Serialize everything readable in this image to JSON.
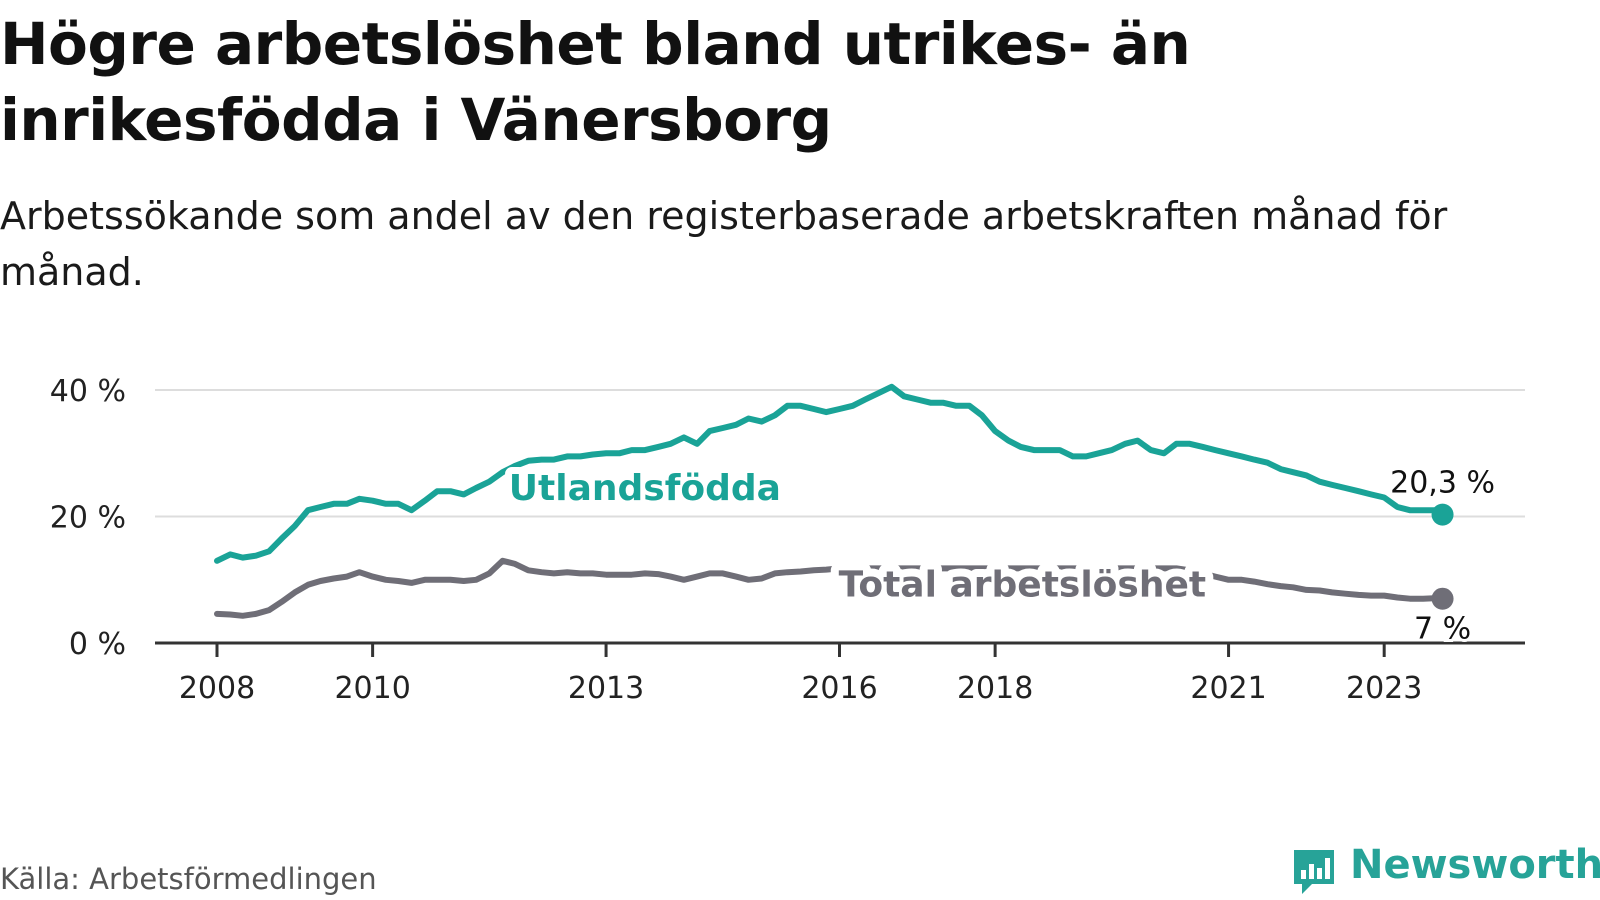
{
  "header": {
    "title": "Högre arbetslöshet bland utrikes- än inrikesfödda i Vänersborg",
    "subtitle": "Arbetssökande som andel av den registerbaserade arbetskraften månad för månad."
  },
  "footer": {
    "source": "Källa: Arbetsförmedlingen",
    "brand": "Newsworthy"
  },
  "colors": {
    "foreign": "#1aa397",
    "total": "#6f6e77",
    "grid": "#dddddd",
    "axis": "#333333",
    "brand": "#27a398"
  },
  "chart_data": {
    "type": "line",
    "title": "Högre arbetslöshet bland utrikes- än inrikesfödda i Vänersborg",
    "xlabel": "",
    "ylabel": "",
    "xlim": [
      2008,
      2024
    ],
    "ylim": [
      0,
      40
    ],
    "grid": true,
    "x_ticks": [
      2008,
      2010,
      2013,
      2016,
      2018,
      2021,
      2023
    ],
    "x_tick_labels": [
      "2008",
      "2010",
      "2013",
      "2016",
      "2018",
      "2021",
      "2023"
    ],
    "y_ticks": [
      0,
      20,
      40
    ],
    "y_tick_labels": [
      "0 %",
      "20 %",
      "40 %"
    ],
    "series": [
      {
        "name": "Utlandsfödda",
        "end_label": "20,3 %",
        "x": [
          2008.0,
          2008.17,
          2008.33,
          2008.5,
          2008.67,
          2008.83,
          2009.0,
          2009.17,
          2009.33,
          2009.5,
          2009.67,
          2009.83,
          2010.0,
          2010.17,
          2010.33,
          2010.5,
          2010.67,
          2010.83,
          2011.0,
          2011.17,
          2011.33,
          2011.5,
          2011.67,
          2011.83,
          2012.0,
          2012.17,
          2012.33,
          2012.5,
          2012.67,
          2012.83,
          2013.0,
          2013.17,
          2013.33,
          2013.5,
          2013.67,
          2013.83,
          2014.0,
          2014.17,
          2014.33,
          2014.5,
          2014.67,
          2014.83,
          2015.0,
          2015.17,
          2015.33,
          2015.5,
          2015.67,
          2015.83,
          2016.0,
          2016.17,
          2016.33,
          2016.5,
          2016.67,
          2016.83,
          2017.0,
          2017.17,
          2017.33,
          2017.5,
          2017.67,
          2017.83,
          2018.0,
          2018.17,
          2018.33,
          2018.5,
          2018.67,
          2018.83,
          2019.0,
          2019.17,
          2019.33,
          2019.5,
          2019.67,
          2019.83,
          2020.0,
          2020.17,
          2020.33,
          2020.5,
          2020.67,
          2020.83,
          2021.0,
          2021.17,
          2021.33,
          2021.5,
          2021.67,
          2021.83,
          2022.0,
          2022.17,
          2022.33,
          2022.5,
          2022.67,
          2022.83,
          2023.0,
          2023.17,
          2023.33,
          2023.5,
          2023.67,
          2023.75
        ],
        "values": [
          13.0,
          14.0,
          13.5,
          13.8,
          14.5,
          16.5,
          18.5,
          21.0,
          21.5,
          22.0,
          22.0,
          22.8,
          22.5,
          22.0,
          22.0,
          21.0,
          22.5,
          24.0,
          24.0,
          23.5,
          24.5,
          25.5,
          27.0,
          28.0,
          28.8,
          29.0,
          29.0,
          29.5,
          29.5,
          29.8,
          30.0,
          30.0,
          30.5,
          30.5,
          31.0,
          31.5,
          32.5,
          31.5,
          33.5,
          34.0,
          34.5,
          35.5,
          35.0,
          36.0,
          37.5,
          37.5,
          37.0,
          36.5,
          37.0,
          37.5,
          38.5,
          39.5,
          40.5,
          39.0,
          38.5,
          38.0,
          38.0,
          37.5,
          37.5,
          36.0,
          33.5,
          32.0,
          31.0,
          30.5,
          30.5,
          30.5,
          29.5,
          29.5,
          30.0,
          30.5,
          31.5,
          32.0,
          30.5,
          30.0,
          31.5,
          31.5,
          31.0,
          30.5,
          30.0,
          29.5,
          29.0,
          28.5,
          27.5,
          27.0,
          26.5,
          25.5,
          25.0,
          24.5,
          24.0,
          23.5,
          23.0,
          21.5,
          21.0,
          21.0,
          21.0,
          20.3
        ]
      },
      {
        "name": "Total arbetslöshet",
        "end_label": "7 %",
        "x": [
          2008.0,
          2008.17,
          2008.33,
          2008.5,
          2008.67,
          2008.83,
          2009.0,
          2009.17,
          2009.33,
          2009.5,
          2009.67,
          2009.83,
          2010.0,
          2010.17,
          2010.33,
          2010.5,
          2010.67,
          2010.83,
          2011.0,
          2011.17,
          2011.33,
          2011.5,
          2011.67,
          2011.83,
          2012.0,
          2012.17,
          2012.33,
          2012.5,
          2012.67,
          2012.83,
          2013.0,
          2013.17,
          2013.33,
          2013.5,
          2013.67,
          2013.83,
          2014.0,
          2014.17,
          2014.33,
          2014.5,
          2014.67,
          2014.83,
          2015.0,
          2015.17,
          2015.33,
          2015.5,
          2015.67,
          2015.83,
          2016.0,
          2016.17,
          2016.33,
          2016.5,
          2016.67,
          2016.83,
          2017.0,
          2017.17,
          2017.33,
          2017.5,
          2017.67,
          2017.83,
          2018.0,
          2018.17,
          2018.33,
          2018.5,
          2018.67,
          2018.83,
          2019.0,
          2019.17,
          2019.33,
          2019.5,
          2019.67,
          2019.83,
          2020.0,
          2020.17,
          2020.33,
          2020.5,
          2020.67,
          2020.83,
          2021.0,
          2021.17,
          2021.33,
          2021.5,
          2021.67,
          2021.83,
          2022.0,
          2022.17,
          2022.33,
          2022.5,
          2022.67,
          2022.83,
          2023.0,
          2023.17,
          2023.33,
          2023.5,
          2023.67,
          2023.75
        ],
        "values": [
          4.6,
          4.5,
          4.3,
          4.6,
          5.2,
          6.5,
          8.0,
          9.2,
          9.8,
          10.2,
          10.5,
          11.2,
          10.5,
          10.0,
          9.8,
          9.5,
          10.0,
          10.0,
          10.0,
          9.8,
          10.0,
          11.0,
          13.0,
          12.5,
          11.5,
          11.2,
          11.0,
          11.2,
          11.0,
          11.0,
          10.8,
          10.8,
          10.8,
          11.0,
          10.9,
          10.5,
          10.0,
          10.5,
          11.0,
          11.0,
          10.5,
          10.0,
          10.2,
          11.0,
          11.2,
          11.3,
          11.5,
          11.6,
          11.8,
          11.8,
          11.8,
          11.8,
          11.8,
          11.8,
          11.8,
          11.8,
          11.8,
          11.8,
          11.8,
          11.8,
          11.8,
          11.8,
          11.8,
          11.8,
          11.8,
          11.8,
          11.8,
          11.8,
          11.8,
          11.8,
          11.8,
          11.8,
          11.8,
          11.8,
          11.8,
          11.5,
          11.0,
          10.5,
          10.0,
          10.0,
          9.7,
          9.3,
          9.0,
          8.8,
          8.4,
          8.3,
          8.0,
          7.8,
          7.6,
          7.5,
          7.5,
          7.2,
          7.0,
          7.0,
          7.1,
          7.0
        ]
      }
    ]
  }
}
